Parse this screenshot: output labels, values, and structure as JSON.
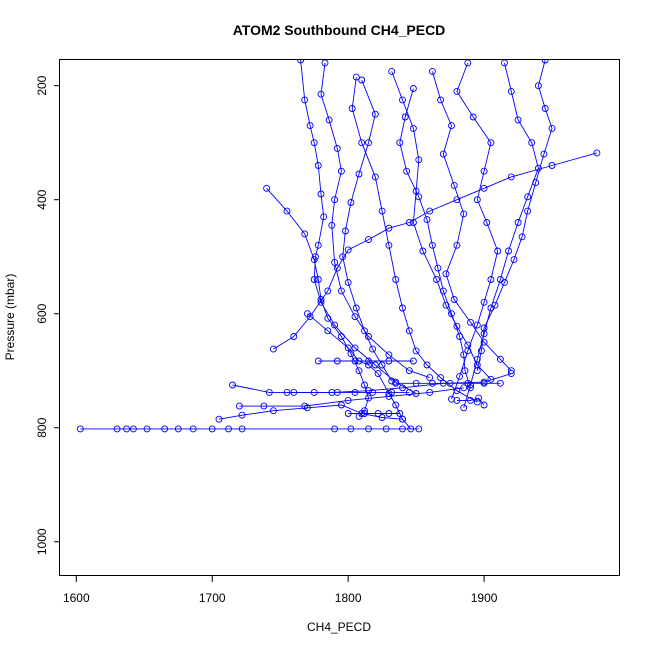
{
  "chart_data": {
    "type": "scatter",
    "title": "ATOM2 Southbound CH4_PECD",
    "xlabel": "CH4_PECD",
    "ylabel": "Pressure (mbar)",
    "xlim": [
      1588,
      2000
    ],
    "ylim": [
      1060,
      155
    ],
    "y_reversed": true,
    "xticks": [
      1600,
      1700,
      1800,
      1900
    ],
    "yticks": [
      200,
      400,
      600,
      800,
      1000
    ],
    "grid": false,
    "legend": "none",
    "marker": "open-circle",
    "line_connected": true,
    "colors": {
      "series": "#0000ff",
      "text": "#000000",
      "frame": "#000000"
    },
    "series": [
      {
        "points": [
          [
            1603,
            802
          ],
          [
            1630,
            802
          ],
          [
            1637,
            802
          ],
          [
            1642,
            802
          ],
          [
            1652,
            802
          ],
          [
            1665,
            802
          ],
          [
            1675,
            802
          ],
          [
            1686,
            802
          ],
          [
            1700,
            802
          ],
          [
            1712,
            802
          ],
          [
            1722,
            802
          ],
          [
            1790,
            802
          ],
          [
            1802,
            802
          ],
          [
            1815,
            802
          ],
          [
            1828,
            802
          ],
          [
            1840,
            802
          ],
          [
            1852,
            802
          ]
        ]
      },
      {
        "points": [
          [
            1705,
            785
          ],
          [
            1722,
            778
          ],
          [
            1745,
            770
          ],
          [
            1770,
            765
          ],
          [
            1795,
            760
          ],
          [
            1810,
            775
          ],
          [
            1825,
            782
          ],
          [
            1840,
            785
          ]
        ]
      },
      {
        "points": [
          [
            1720,
            762
          ],
          [
            1738,
            762
          ],
          [
            1768,
            762
          ],
          [
            1800,
            752
          ],
          [
            1830,
            745
          ],
          [
            1860,
            738
          ],
          [
            1885,
            730
          ]
        ]
      },
      {
        "points": [
          [
            1715,
            725
          ],
          [
            1742,
            738
          ],
          [
            1760,
            738
          ],
          [
            1788,
            738
          ],
          [
            1815,
            735
          ],
          [
            1840,
            730
          ],
          [
            1870,
            722
          ],
          [
            1900,
            720
          ],
          [
            1920,
            705
          ]
        ]
      },
      {
        "points": [
          [
            1745,
            662
          ],
          [
            1760,
            640
          ],
          [
            1772,
            605
          ],
          [
            1785,
            560
          ],
          [
            1792,
            520
          ],
          [
            1800,
            488
          ],
          [
            1815,
            470
          ],
          [
            1830,
            450
          ],
          [
            1845,
            440
          ],
          [
            1860,
            420
          ],
          [
            1880,
            400
          ],
          [
            1900,
            380
          ],
          [
            1920,
            360
          ],
          [
            1950,
            340
          ],
          [
            1983,
            318
          ]
        ]
      },
      {
        "points": [
          [
            1765,
            155
          ],
          [
            1768,
            225
          ],
          [
            1772,
            270
          ],
          [
            1775,
            300
          ],
          [
            1778,
            340
          ],
          [
            1780,
            390
          ],
          [
            1782,
            430
          ],
          [
            1778,
            480
          ],
          [
            1776,
            500
          ],
          [
            1775,
            540
          ],
          [
            1780,
            580
          ],
          [
            1790,
            620
          ],
          [
            1805,
            660
          ],
          [
            1820,
            690
          ],
          [
            1835,
            720
          ],
          [
            1850,
            740
          ]
        ]
      },
      {
        "points": [
          [
            1783,
            160
          ],
          [
            1780,
            215
          ],
          [
            1786,
            260
          ],
          [
            1792,
            310
          ],
          [
            1795,
            350
          ],
          [
            1790,
            400
          ],
          [
            1788,
            445
          ],
          [
            1790,
            510
          ],
          [
            1795,
            560
          ],
          [
            1805,
            605
          ],
          [
            1815,
            640
          ],
          [
            1830,
            672
          ],
          [
            1845,
            700
          ],
          [
            1860,
            712
          ]
        ]
      },
      {
        "points": [
          [
            1806,
            185
          ],
          [
            1803,
            240
          ],
          [
            1810,
            300
          ],
          [
            1820,
            360
          ],
          [
            1825,
            420
          ],
          [
            1830,
            480
          ],
          [
            1835,
            540
          ],
          [
            1840,
            590
          ],
          [
            1845,
            630
          ],
          [
            1850,
            665
          ],
          [
            1858,
            690
          ],
          [
            1868,
            712
          ],
          [
            1880,
            735
          ],
          [
            1895,
            755
          ]
        ]
      },
      {
        "points": [
          [
            1832,
            175
          ],
          [
            1840,
            225
          ],
          [
            1848,
            275
          ],
          [
            1852,
            330
          ],
          [
            1850,
            385
          ],
          [
            1848,
            440
          ],
          [
            1855,
            490
          ],
          [
            1865,
            540
          ],
          [
            1872,
            585
          ],
          [
            1880,
            622
          ],
          [
            1888,
            655
          ],
          [
            1895,
            690
          ],
          [
            1905,
            715
          ]
        ]
      },
      {
        "points": [
          [
            1862,
            175
          ],
          [
            1868,
            225
          ],
          [
            1876,
            270
          ],
          [
            1870,
            320
          ],
          [
            1878,
            375
          ],
          [
            1885,
            425
          ],
          [
            1880,
            480
          ],
          [
            1872,
            530
          ],
          [
            1878,
            575
          ],
          [
            1890,
            615
          ],
          [
            1900,
            650
          ],
          [
            1912,
            680
          ],
          [
            1920,
            700
          ]
        ]
      },
      {
        "points": [
          [
            1888,
            160
          ],
          [
            1880,
            210
          ],
          [
            1892,
            255
          ],
          [
            1905,
            300
          ],
          [
            1900,
            350
          ],
          [
            1895,
            400
          ],
          [
            1902,
            440
          ],
          [
            1910,
            490
          ],
          [
            1905,
            540
          ],
          [
            1900,
            580
          ],
          [
            1895,
            620
          ],
          [
            1888,
            665
          ],
          [
            1882,
            710
          ],
          [
            1876,
            750
          ]
        ]
      },
      {
        "points": [
          [
            1915,
            160
          ],
          [
            1920,
            210
          ],
          [
            1925,
            260
          ],
          [
            1935,
            300
          ],
          [
            1940,
            345
          ],
          [
            1932,
            395
          ],
          [
            1925,
            440
          ],
          [
            1918,
            490
          ],
          [
            1912,
            540
          ],
          [
            1905,
            590
          ],
          [
            1900,
            635
          ],
          [
            1895,
            680
          ],
          [
            1890,
            725
          ],
          [
            1885,
            765
          ]
        ]
      },
      {
        "points": [
          [
            1945,
            155
          ],
          [
            1940,
            200
          ],
          [
            1945,
            240
          ],
          [
            1950,
            275
          ],
          [
            1944,
            320
          ],
          [
            1938,
            370
          ],
          [
            1932,
            420
          ],
          [
            1928,
            465
          ],
          [
            1922,
            505
          ],
          [
            1915,
            545
          ],
          [
            1908,
            585
          ],
          [
            1900,
            625
          ],
          [
            1898,
            665
          ],
          [
            1895,
            700
          ]
        ]
      },
      {
        "points": [
          [
            1770,
            600
          ],
          [
            1785,
            630
          ],
          [
            1800,
            660
          ],
          [
            1808,
            683
          ],
          [
            1815,
            690
          ],
          [
            1822,
            705
          ],
          [
            1830,
            740
          ],
          [
            1835,
            760
          ],
          [
            1840,
            785
          ],
          [
            1846,
            802
          ]
        ]
      },
      {
        "points": [
          [
            1740,
            380
          ],
          [
            1755,
            420
          ],
          [
            1768,
            460
          ],
          [
            1775,
            505
          ],
          [
            1778,
            540
          ],
          [
            1780,
            575
          ],
          [
            1785,
            608
          ],
          [
            1795,
            640
          ],
          [
            1802,
            670
          ],
          [
            1808,
            700
          ],
          [
            1812,
            725
          ],
          [
            1815,
            748
          ],
          [
            1812,
            770
          ],
          [
            1808,
            780
          ]
        ]
      },
      {
        "points": [
          [
            1810,
            190
          ],
          [
            1820,
            250
          ],
          [
            1815,
            300
          ],
          [
            1808,
            355
          ],
          [
            1802,
            405
          ],
          [
            1798,
            455
          ],
          [
            1796,
            500
          ],
          [
            1800,
            545
          ],
          [
            1806,
            590
          ],
          [
            1812,
            630
          ],
          [
            1818,
            662
          ],
          [
            1825,
            690
          ],
          [
            1832,
            718
          ]
        ]
      },
      {
        "points": [
          [
            1848,
            205
          ],
          [
            1842,
            255
          ],
          [
            1838,
            300
          ],
          [
            1843,
            350
          ],
          [
            1852,
            395
          ],
          [
            1858,
            435
          ],
          [
            1862,
            480
          ],
          [
            1866,
            520
          ],
          [
            1870,
            560
          ],
          [
            1876,
            600
          ],
          [
            1882,
            640
          ],
          [
            1885,
            672
          ],
          [
            1886,
            700
          ],
          [
            1890,
            730
          ]
        ]
      },
      {
        "points": [
          [
            1778,
            683
          ],
          [
            1792,
            683
          ],
          [
            1805,
            683
          ],
          [
            1815,
            683
          ],
          [
            1830,
            683
          ],
          [
            1848,
            683
          ]
        ]
      },
      {
        "points": [
          [
            1755,
            738
          ],
          [
            1775,
            738
          ],
          [
            1792,
            738
          ],
          [
            1805,
            738
          ],
          [
            1818,
            738
          ],
          [
            1832,
            738
          ],
          [
            1845,
            738
          ]
        ]
      },
      {
        "points": [
          [
            1835,
            722
          ],
          [
            1850,
            722
          ],
          [
            1862,
            722
          ],
          [
            1875,
            722
          ],
          [
            1888,
            722
          ],
          [
            1900,
            722
          ],
          [
            1912,
            722
          ]
        ]
      },
      {
        "points": [
          [
            1800,
            775
          ],
          [
            1812,
            775
          ],
          [
            1822,
            775
          ],
          [
            1830,
            775
          ],
          [
            1838,
            775
          ]
        ]
      },
      {
        "points": [
          [
            1880,
            752
          ],
          [
            1890,
            752
          ],
          [
            1896,
            748
          ],
          [
            1900,
            760
          ]
        ]
      }
    ]
  }
}
